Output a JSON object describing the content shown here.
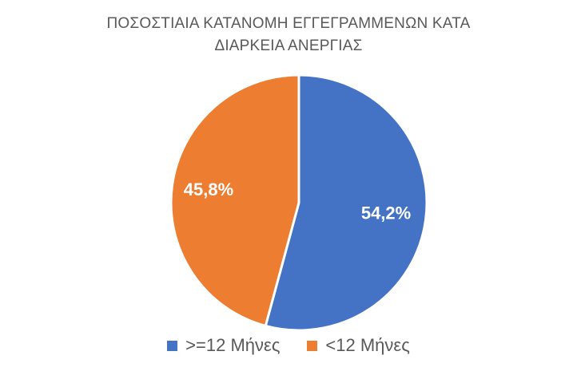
{
  "chart_data": {
    "type": "pie",
    "title": [
      "ΠΟΣΟΣΤΙΑΙΑ ΚΑΤΑΝΟΜΗ ΕΓΓΕΓΡΑΜΜΕΝΩΝ ΚΑΤΑ",
      "ΔΙΑΡΚΕΙΑ ΑΝΕΡΓΙΑΣ"
    ],
    "categories": [
      ">=12 Μήνες",
      "<12 Μήνες"
    ],
    "values": [
      54.2,
      45.8
    ],
    "data_labels": [
      "54,2%",
      "45,8%"
    ],
    "colors": [
      "#4472C4",
      "#ED7D31"
    ],
    "legend_placement": "bottom"
  }
}
